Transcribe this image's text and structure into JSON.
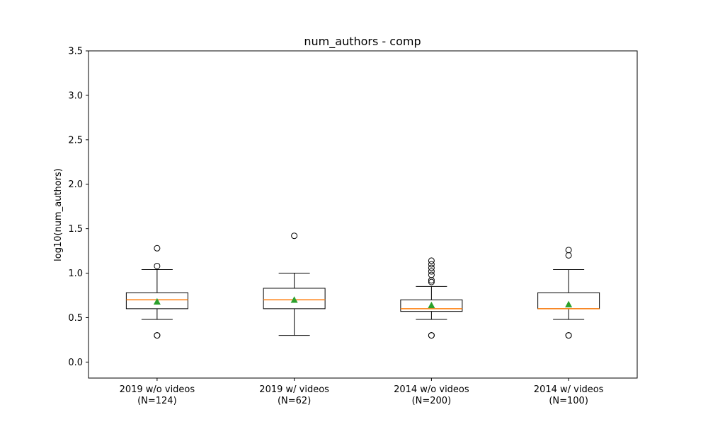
{
  "chart_data": {
    "type": "box",
    "title": "num_authors - comp",
    "xlabel": "",
    "ylabel": "log10(num_authors)",
    "ylim": [
      -0.18,
      3.5
    ],
    "yticks": [
      "0.0",
      "0.5",
      "1.0",
      "1.5",
      "2.0",
      "2.5",
      "3.0",
      "3.5"
    ],
    "yticks_values": [
      0.0,
      0.5,
      1.0,
      1.5,
      2.0,
      2.5,
      3.0,
      3.5
    ],
    "grid": false,
    "colors": {
      "box": "#000000",
      "median": "#ff7f0e",
      "mean": "#2ca02c",
      "flier": "#000000"
    },
    "categories": [
      {
        "label": "2019 w/o videos",
        "n_label": "(N=124)"
      },
      {
        "label": "2019 w/ videos",
        "n_label": "(N=62)"
      },
      {
        "label": "2014 w/o videos",
        "n_label": "(N=200)"
      },
      {
        "label": "2014 w/ videos",
        "n_label": "(N=100)"
      }
    ],
    "boxes": [
      {
        "q1": 0.6,
        "median": 0.7,
        "q3": 0.78,
        "whisker_low": 0.48,
        "whisker_high": 1.04,
        "mean": 0.68,
        "fliers": [
          0.3,
          0.3,
          1.08,
          1.28
        ]
      },
      {
        "q1": 0.6,
        "median": 0.7,
        "q3": 0.83,
        "whisker_low": 0.3,
        "whisker_high": 1.0,
        "mean": 0.7,
        "fliers": [
          1.42
        ]
      },
      {
        "q1": 0.57,
        "median": 0.6,
        "q3": 0.7,
        "whisker_low": 0.48,
        "whisker_high": 0.85,
        "mean": 0.64,
        "fliers": [
          0.3,
          0.3,
          0.9,
          0.92,
          0.98,
          1.02,
          1.06,
          1.1,
          1.14
        ]
      },
      {
        "q1": 0.6,
        "median": 0.6,
        "q3": 0.78,
        "whisker_low": 0.48,
        "whisker_high": 1.04,
        "mean": 0.65,
        "fliers": [
          0.3,
          0.3,
          1.2,
          1.26
        ]
      }
    ]
  }
}
